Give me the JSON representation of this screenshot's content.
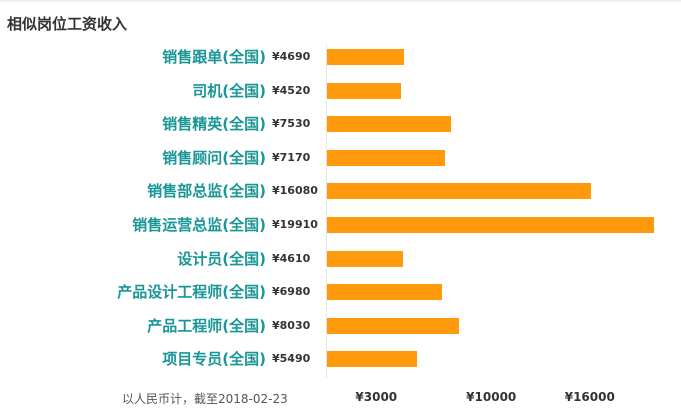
{
  "chart_title": "相似岗位工资收入",
  "footnote": "以人民币计，截至2018-02-23",
  "colors": {
    "bar": "#ff9a0d",
    "category_text": "#1a9696",
    "title_text": "#333333"
  },
  "chart_data": {
    "type": "bar",
    "orientation": "horizontal",
    "title": "相似岗位工资收入",
    "categories": [
      "销售跟单(全国)",
      "司机(全国)",
      "销售精英(全国)",
      "销售顾问(全国)",
      "销售部总监(全国)",
      "销售运营总监(全国)",
      "设计员(全国)",
      "产品设计工程师(全国)",
      "产品工程师(全国)",
      "项目专员(全国)"
    ],
    "values": [
      4690,
      4520,
      7530,
      7170,
      16080,
      19910,
      4610,
      6980,
      8030,
      5490
    ],
    "value_labels": [
      "¥4690",
      "¥4520",
      "¥7530",
      "¥7170",
      "¥16080",
      "¥19910",
      "¥4610",
      "¥6980",
      "¥8030",
      "¥5490"
    ],
    "x_ticks": [
      3000,
      10000,
      16000
    ],
    "x_tick_labels": [
      "¥3000",
      "¥10000",
      "¥16000"
    ],
    "xlim": [
      0,
      19910
    ],
    "grid": false,
    "legend": "none"
  }
}
